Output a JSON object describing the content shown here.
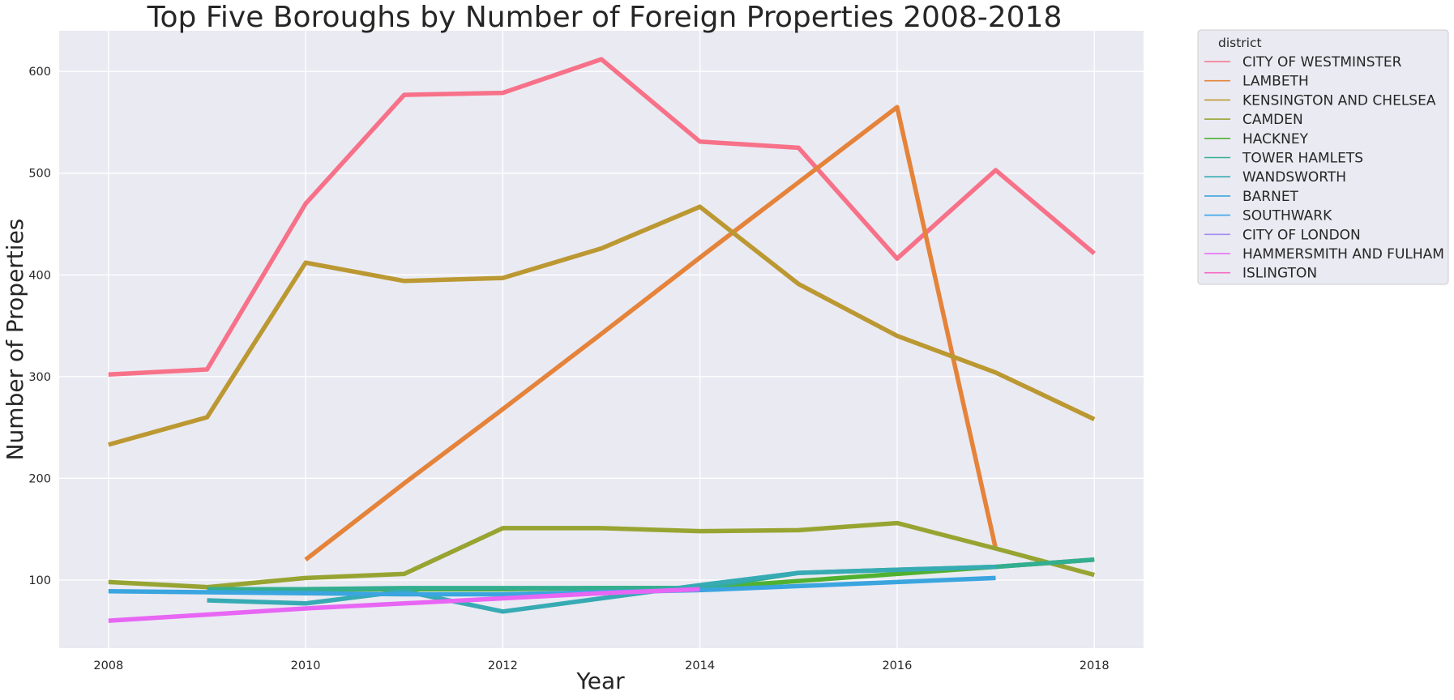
{
  "chart_data": {
    "type": "line",
    "title": "Top Five Boroughs by Number of Foreign Properties 2008-2018",
    "xlabel": "Year",
    "ylabel": "Number of Properties",
    "xlim": [
      2007.5,
      2018.5
    ],
    "ylim": [
      33,
      640
    ],
    "x_ticks": [
      2008,
      2010,
      2012,
      2014,
      2016,
      2018
    ],
    "y_ticks": [
      100,
      200,
      300,
      400,
      500,
      600
    ],
    "grid": true,
    "background": "#eaeaf2",
    "legend": {
      "title": "district",
      "placement": "outside-right"
    },
    "series": [
      {
        "name": "CITY OF WESTMINSTER",
        "color": "#f77189",
        "points": [
          [
            2008,
            302
          ],
          [
            2009,
            307
          ],
          [
            2010,
            470
          ],
          [
            2011,
            577
          ],
          [
            2012,
            579
          ],
          [
            2013,
            612
          ],
          [
            2014,
            531
          ],
          [
            2015,
            525
          ],
          [
            2016,
            416
          ],
          [
            2017,
            503
          ],
          [
            2018,
            421
          ]
        ]
      },
      {
        "name": "LAMBETH",
        "color": "#e5833a",
        "points": [
          [
            2010,
            120
          ],
          [
            2011,
            195
          ],
          [
            2012,
            268
          ],
          [
            2013,
            342
          ],
          [
            2014,
            417
          ],
          [
            2015,
            491
          ],
          [
            2016,
            565
          ],
          [
            2017,
            131
          ]
        ]
      },
      {
        "name": "KENSINGTON AND CHELSEA",
        "color": "#bb9832",
        "points": [
          [
            2008,
            233
          ],
          [
            2009,
            260
          ],
          [
            2010,
            412
          ],
          [
            2011,
            394
          ],
          [
            2012,
            397
          ],
          [
            2013,
            426
          ],
          [
            2014,
            467
          ],
          [
            2015,
            391
          ],
          [
            2016,
            340
          ],
          [
            2017,
            304
          ],
          [
            2018,
            258
          ]
        ]
      },
      {
        "name": "CAMDEN",
        "color": "#97a431",
        "points": [
          [
            2008,
            98
          ],
          [
            2009,
            93
          ],
          [
            2010,
            102
          ],
          [
            2011,
            106
          ],
          [
            2012,
            151
          ],
          [
            2013,
            151
          ],
          [
            2014,
            148
          ],
          [
            2015,
            149
          ],
          [
            2016,
            156
          ],
          [
            2017,
            131
          ],
          [
            2018,
            105
          ]
        ]
      },
      {
        "name": "HACKNEY",
        "color": "#50b131",
        "points": [
          [
            2009,
            91
          ],
          [
            2010,
            91
          ],
          [
            2011,
            91
          ],
          [
            2012,
            91
          ],
          [
            2013,
            92
          ],
          [
            2014,
            92
          ],
          [
            2015,
            99
          ],
          [
            2016,
            106
          ],
          [
            2017,
            113
          ],
          [
            2018,
            120
          ]
        ]
      },
      {
        "name": "TOWER HAMLETS",
        "color": "#34ae91",
        "points": [
          [
            2009,
            91
          ],
          [
            2010,
            91
          ],
          [
            2011,
            92
          ],
          [
            2012,
            92
          ],
          [
            2013,
            92
          ],
          [
            2014,
            92
          ],
          [
            2015,
            107
          ],
          [
            2016,
            110
          ],
          [
            2017,
            113
          ],
          [
            2018,
            120
          ]
        ]
      },
      {
        "name": "WANDSWORTH",
        "color": "#37abb4",
        "points": [
          [
            2009,
            80
          ],
          [
            2010,
            77
          ],
          [
            2011,
            89
          ],
          [
            2012,
            69
          ],
          [
            2013,
            82
          ],
          [
            2014,
            95
          ],
          [
            2015,
            107
          ],
          [
            2016,
            110
          ],
          [
            2017,
            113
          ]
        ]
      },
      {
        "name": "BARNET",
        "color": "#3aa5df",
        "points": [
          [
            2008,
            89
          ],
          [
            2009,
            88
          ],
          [
            2010,
            87
          ],
          [
            2011,
            86
          ],
          [
            2012,
            86
          ],
          [
            2013,
            88
          ],
          [
            2014,
            90
          ],
          [
            2015,
            94
          ],
          [
            2016,
            98
          ],
          [
            2017,
            102
          ]
        ]
      },
      {
        "name": "SOUTHWARK",
        "color": "#3ba3ec",
        "points": []
      },
      {
        "name": "CITY OF LONDON",
        "color": "#a48cf4",
        "points": []
      },
      {
        "name": "HAMMERSMITH AND FULHAM",
        "color": "#e866f4",
        "points": [
          [
            2008,
            60
          ],
          [
            2009,
            66
          ],
          [
            2010,
            72
          ],
          [
            2011,
            77
          ],
          [
            2012,
            82
          ],
          [
            2013,
            87
          ],
          [
            2014,
            91
          ]
        ]
      },
      {
        "name": "ISLINGTON",
        "color": "#f668c2",
        "points": []
      }
    ]
  }
}
